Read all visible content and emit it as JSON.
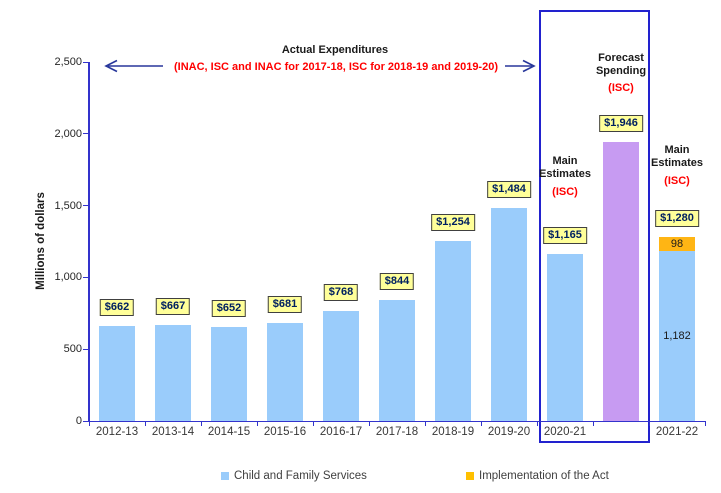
{
  "colors": {
    "axis": "#3333CC",
    "box_border": "#2222CE",
    "arrow": "#28379B",
    "bar_blue": "#9ACCFB",
    "bar_purple": "#C79BF2",
    "bar_orange": "#FFB514",
    "legend_orange": "#FFC000",
    "label_box_bg": "#FFFF99",
    "label_box_text": "#002060",
    "red_text": "#FF0000"
  },
  "annotations": {
    "actual_title": "Actual Expenditures",
    "actual_subtitle": "(INAC, ISC and INAC for 2017-18, ISC for 2018-19 and 2019-20)",
    "forecast_title": "Forecast\nSpending",
    "forecast_subtitle": "(ISC)",
    "main_estimates_2020_title": "Main\nEstimates",
    "main_estimates_2020_subtitle": "(ISC)",
    "main_estimates_2021_title": "Main\nEstimates",
    "main_estimates_2021_subtitle": "(ISC)"
  },
  "legend": {
    "items": [
      {
        "label": "Child and Family Services",
        "color_key": "bar_blue"
      },
      {
        "label": "Implementation of the Act",
        "color_key": "legend_orange"
      }
    ]
  },
  "chart_data": {
    "type": "bar",
    "title": "",
    "ylabel": "Millions of dollars",
    "xlabel": "",
    "ylim": [
      0,
      2500
    ],
    "grid": false,
    "legend_position": "bottom",
    "yticks": [
      {
        "value": 0,
        "label": "0"
      },
      {
        "value": 500,
        "label": "500"
      },
      {
        "value": 1000,
        "label": "1,000"
      },
      {
        "value": 1500,
        "label": "1,500"
      },
      {
        "value": 2000,
        "label": "2,000"
      },
      {
        "value": 2500,
        "label": "2,500"
      }
    ],
    "series_colors": {
      "cfs": "bar_blue",
      "forecast": "bar_purple",
      "act": "bar_orange"
    },
    "bars": [
      {
        "slot": 0,
        "category": "2012-13",
        "label": "$662",
        "segments": [
          {
            "series": "cfs",
            "value": 662
          }
        ]
      },
      {
        "slot": 1,
        "category": "2013-14",
        "label": "$667",
        "segments": [
          {
            "series": "cfs",
            "value": 667
          }
        ]
      },
      {
        "slot": 2,
        "category": "2014-15",
        "label": "$652",
        "segments": [
          {
            "series": "cfs",
            "value": 652
          }
        ]
      },
      {
        "slot": 3,
        "category": "2015-16",
        "label": "$681",
        "segments": [
          {
            "series": "cfs",
            "value": 681
          }
        ]
      },
      {
        "slot": 4,
        "category": "2016-17",
        "label": "$768",
        "segments": [
          {
            "series": "cfs",
            "value": 768
          }
        ]
      },
      {
        "slot": 5,
        "category": "2017-18",
        "label": "$844",
        "segments": [
          {
            "series": "cfs",
            "value": 844
          }
        ]
      },
      {
        "slot": 6,
        "category": "2018-19",
        "label": "$1,254",
        "segments": [
          {
            "series": "cfs",
            "value": 1254
          }
        ]
      },
      {
        "slot": 7,
        "category": "2019-20",
        "label": "$1,484",
        "segments": [
          {
            "series": "cfs",
            "value": 1484
          }
        ]
      },
      {
        "slot": 8,
        "category": "2020-21",
        "label": "$1,165",
        "note": "Main Estimates (ISC)",
        "segments": [
          {
            "series": "cfs",
            "value": 1165
          }
        ]
      },
      {
        "slot": 9,
        "category": "",
        "label": "$1,946",
        "note": "Forecast Spending (ISC)",
        "segments": [
          {
            "series": "forecast",
            "value": 1946
          }
        ]
      },
      {
        "slot": 10,
        "category": "2021-22",
        "label": "$1,280",
        "note": "Main Estimates (ISC)",
        "segments": [
          {
            "series": "cfs",
            "value": 1182,
            "inner_label": "1,182"
          },
          {
            "series": "act",
            "value": 98,
            "inner_label": "98"
          }
        ]
      }
    ]
  }
}
